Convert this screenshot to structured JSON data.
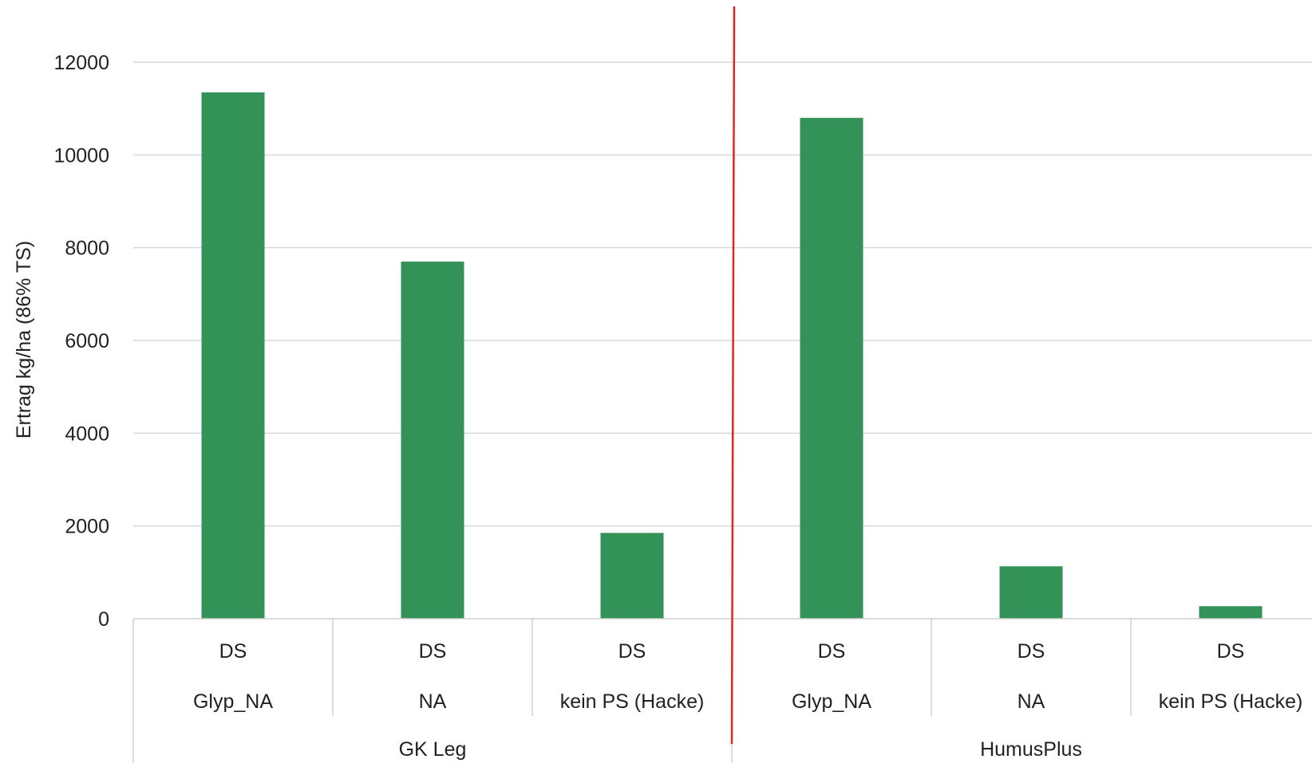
{
  "chart_data": {
    "type": "bar",
    "title": "",
    "xlabel": "",
    "ylabel": "Ertrag kg/ha (86% TS)",
    "ylim": [
      0,
      12000
    ],
    "yticks": [
      0,
      2000,
      4000,
      6000,
      8000,
      10000,
      12000
    ],
    "grid": true,
    "categories": [
      {
        "level1": "DS",
        "level2": "Glyp_NA",
        "group": "GK Leg"
      },
      {
        "level1": "DS",
        "level2": "NA",
        "group": "GK Leg"
      },
      {
        "level1": "DS",
        "level2": "kein PS (Hacke)",
        "group": "GK Leg"
      },
      {
        "level1": "DS",
        "level2": "Glyp_NA",
        "group": "HumusPlus"
      },
      {
        "level1": "DS",
        "level2": "NA",
        "group": "HumusPlus"
      },
      {
        "level1": "DS",
        "level2": "kein PS (Hacke)",
        "group": "HumusPlus"
      }
    ],
    "groups": [
      "GK Leg",
      "HumusPlus"
    ],
    "values": [
      11350,
      7700,
      1850,
      10800,
      1130,
      270
    ],
    "bar_color": "#339258",
    "separator_color": "#e3261f",
    "grid_color": "#d9d9d9",
    "axis_color": "#d0d0d0"
  }
}
